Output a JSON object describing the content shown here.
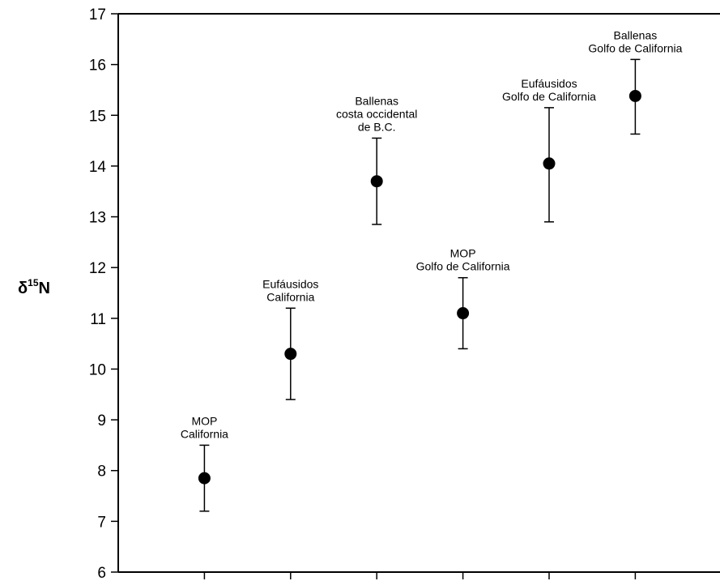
{
  "chart_data": {
    "type": "scatter",
    "title": "",
    "xlabel": "",
    "ylabel": "δ15N",
    "ylabel_parts": {
      "main": "δ",
      "sup": "15",
      "tail": "N"
    },
    "ylim": [
      6,
      17
    ],
    "yticks": [
      6,
      7,
      8,
      9,
      10,
      11,
      12,
      13,
      14,
      15,
      16,
      17
    ],
    "xlim": [
      0,
      7
    ],
    "xticks": [
      1,
      2,
      3,
      4,
      5,
      6,
      7
    ],
    "grid": false,
    "legend": "none",
    "points": [
      {
        "x": 1,
        "y": 7.85,
        "err_low": 7.2,
        "err_high": 8.5,
        "label": [
          "MOP",
          "California"
        ]
      },
      {
        "x": 2,
        "y": 10.3,
        "err_low": 9.4,
        "err_high": 11.2,
        "label": [
          "Eufáusidos",
          "California"
        ]
      },
      {
        "x": 3,
        "y": 13.7,
        "err_low": 12.85,
        "err_high": 14.55,
        "label": [
          "Ballenas",
          "costa occidental",
          "de B.C."
        ]
      },
      {
        "x": 4,
        "y": 11.1,
        "err_low": 10.4,
        "err_high": 11.8,
        "label": [
          "MOP",
          "Golfo de California"
        ]
      },
      {
        "x": 5,
        "y": 14.05,
        "err_low": 12.9,
        "err_high": 15.15,
        "label": [
          "Eufáusidos",
          "Golfo de California"
        ]
      },
      {
        "x": 6,
        "y": 15.38,
        "err_low": 14.63,
        "err_high": 16.1,
        "label": [
          "Ballenas",
          "Golfo de California"
        ]
      }
    ]
  }
}
